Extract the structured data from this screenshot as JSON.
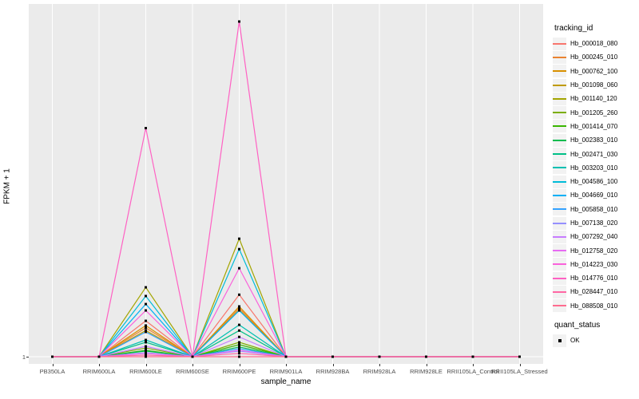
{
  "axes": {
    "y_title": "FPKM + 1",
    "x_title": "sample_name",
    "y_ticks": [
      "1"
    ]
  },
  "legend": {
    "tracking_id_title": "tracking_id",
    "quant_status_title": "quant_status",
    "quant_status_items": [
      {
        "label": "OK",
        "key_shape": "black-square"
      }
    ]
  },
  "style": {
    "panel_background": "#EBEBEB",
    "gridline_color": "#FFFFFF",
    "point_color": "#000000",
    "legend_key_background": "#F2F2F2"
  },
  "chart_data": {
    "type": "line",
    "title": "",
    "xlabel": "sample_name",
    "ylabel": "FPKM + 1",
    "legend_position": "right",
    "grid": "vertical major gridlines per sample plus horizontal line at y=1, white on gray panel",
    "y_axis_note": "log-like scale; only tick labeled is 1 at the baseline. Series values below are relative peak heights: 0 = FPKM+1 of 1 (baseline), 1 = top of the tallest peak",
    "point_marker": "small black square at every sample for every series (quant_status = OK)",
    "x_categories": [
      "PB350LA",
      "RRIM600LA",
      "RRIM600LE",
      "RRIM600SE",
      "RRIM600PE",
      "RRIM901LA",
      "RRIM928BA",
      "RRIM928LA",
      "RRIM928LE",
      "RRII105LA_Control",
      "RRII105LA_Stressed"
    ],
    "series": [
      {
        "name": "Hb_000018_080",
        "color": "#F8766D",
        "values": [
          0,
          0,
          0.107,
          0,
          0.185,
          0,
          0,
          0,
          0,
          0,
          0
        ]
      },
      {
        "name": "Hb_000245_010",
        "color": "#EA8331",
        "values": [
          0,
          0,
          0.086,
          0,
          0.145,
          0,
          0,
          0,
          0,
          0,
          0
        ]
      },
      {
        "name": "Hb_000762_100",
        "color": "#D89000",
        "values": [
          0,
          0,
          0.093,
          0,
          0.15,
          0,
          0,
          0,
          0,
          0,
          0
        ]
      },
      {
        "name": "Hb_001098_060",
        "color": "#C09B00",
        "values": [
          0,
          0,
          0.078,
          0,
          0.14,
          0,
          0,
          0,
          0,
          0,
          0
        ]
      },
      {
        "name": "Hb_001140_120",
        "color": "#A3A500",
        "values": [
          0,
          0,
          0.207,
          0,
          0.352,
          0,
          0,
          0,
          0,
          0,
          0
        ]
      },
      {
        "name": "Hb_001205_260",
        "color": "#7CAE00",
        "values": [
          0,
          0,
          0.026,
          0,
          0.043,
          0,
          0,
          0,
          0,
          0,
          0
        ]
      },
      {
        "name": "Hb_001414_070",
        "color": "#39B600",
        "values": [
          0,
          0,
          0.019,
          0,
          0.036,
          0,
          0,
          0,
          0,
          0,
          0
        ]
      },
      {
        "name": "Hb_002383_010",
        "color": "#00BB4E",
        "values": [
          0,
          0,
          0.017,
          0,
          0.029,
          0,
          0,
          0,
          0,
          0,
          0
        ]
      },
      {
        "name": "Hb_002471_030",
        "color": "#00C087",
        "values": [
          0,
          0,
          0.043,
          0,
          0.078,
          0,
          0,
          0,
          0,
          0,
          0
        ]
      },
      {
        "name": "Hb_003203_010",
        "color": "#00C0B2",
        "values": [
          0,
          0,
          0.05,
          0,
          0.095,
          0,
          0,
          0,
          0,
          0,
          0
        ]
      },
      {
        "name": "Hb_004586_100",
        "color": "#00BCD8",
        "values": [
          0,
          0,
          0.181,
          0,
          0.321,
          0,
          0,
          0,
          0,
          0,
          0
        ]
      },
      {
        "name": "Hb_004669_010",
        "color": "#00B0F6",
        "values": [
          0,
          0,
          0.157,
          0,
          0.138,
          0,
          0,
          0,
          0,
          0,
          0
        ]
      },
      {
        "name": "Hb_005858_010",
        "color": "#35A2FF",
        "values": [
          0,
          0,
          0.074,
          0,
          0.024,
          0,
          0,
          0,
          0,
          0,
          0
        ]
      },
      {
        "name": "Hb_007138_020",
        "color": "#9590FF",
        "values": [
          0,
          0,
          0.012,
          0,
          0.017,
          0,
          0,
          0,
          0,
          0,
          0
        ]
      },
      {
        "name": "Hb_007292_040",
        "color": "#C77CFF",
        "values": [
          0,
          0,
          0.031,
          0,
          0.059,
          0,
          0,
          0,
          0,
          0,
          0
        ]
      },
      {
        "name": "Hb_012758_020",
        "color": "#E76BF3",
        "values": [
          0,
          0,
          0.01,
          0,
          0.019,
          0,
          0,
          0,
          0,
          0,
          0
        ]
      },
      {
        "name": "Hb_014223_030",
        "color": "#FA62DB",
        "values": [
          0,
          0,
          0.138,
          0,
          0.264,
          0,
          0,
          0,
          0,
          0,
          0
        ]
      },
      {
        "name": "Hb_014776_010",
        "color": "#FF61C3",
        "values": [
          0,
          0,
          0.682,
          0,
          1.0,
          0,
          0,
          0,
          0,
          0,
          0
        ]
      },
      {
        "name": "Hb_028447_010",
        "color": "#FF67A4",
        "values": [
          0,
          0,
          0.005,
          0,
          0.01,
          0,
          0,
          0,
          0,
          0,
          0
        ]
      },
      {
        "name": "Hb_088508_010",
        "color": "#FF6C90",
        "values": [
          0,
          0,
          0.0,
          0,
          0.0,
          0,
          0,
          0,
          0,
          0,
          0
        ]
      }
    ]
  }
}
